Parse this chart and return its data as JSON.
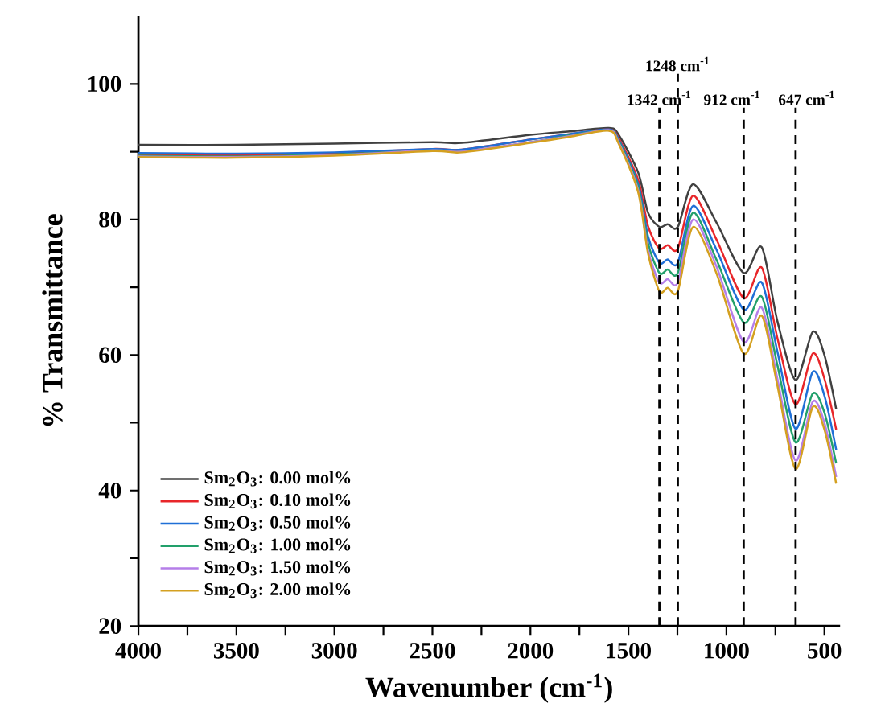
{
  "chart_data": {
    "type": "line",
    "xlabel": "Wavenumber (cm$^{-1}$)",
    "ylabel": "% Transmittance",
    "x": [
      4000,
      3500,
      3000,
      2500,
      2350,
      2000,
      1800,
      1600,
      1550,
      1450,
      1400,
      1342,
      1300,
      1248,
      1170,
      1050,
      912,
      820,
      740,
      647,
      560,
      500,
      440
    ],
    "series": [
      {
        "name": "Sm$_{2}$O$_{3}$: 0.00 mol%",
        "color": "#404040",
        "values": [
          91,
          91,
          91.2,
          91.4,
          91.3,
          92.5,
          93,
          93.5,
          92.5,
          86.9,
          81,
          78.9,
          79.3,
          78.9,
          85.2,
          79.5,
          72.1,
          75.9,
          65,
          56.3,
          63.4,
          60,
          52
        ]
      },
      {
        "name": "Sm$_{2}$O$_{3}$: 0.10 mol%",
        "color": "#e8262a",
        "values": [
          89.6,
          89.5,
          89.8,
          90.4,
          90.3,
          91.8,
          92.6,
          93.3,
          92,
          85.8,
          79,
          75.7,
          76.2,
          75.7,
          83.5,
          77,
          68.4,
          72.9,
          62.5,
          52.7,
          60.2,
          56.5,
          49
        ]
      },
      {
        "name": "Sm$_{2}$O$_{3}$: 0.50 mol%",
        "color": "#1f6fd6",
        "values": [
          89.8,
          89.7,
          89.9,
          90.4,
          90.3,
          91.8,
          92.6,
          93.3,
          91.8,
          85.2,
          77.5,
          73.6,
          74.1,
          73.6,
          82,
          75.5,
          66.7,
          70.7,
          60.5,
          49.1,
          57.5,
          54,
          46
        ]
      },
      {
        "name": "Sm$_{2}$O$_{3}$: 1.00 mol%",
        "color": "#22a06b",
        "values": [
          89.4,
          89.3,
          89.6,
          90.2,
          90,
          91.4,
          92.4,
          93.2,
          91.6,
          84.8,
          76.5,
          72.1,
          72.6,
          72.1,
          81,
          74,
          64.8,
          68.6,
          58.5,
          47.1,
          54.3,
          51.5,
          44
        ]
      },
      {
        "name": "Sm$_{2}$O$_{3}$: 1.50 mol%",
        "color": "#b57ee8",
        "values": [
          89.3,
          89.2,
          89.5,
          90.2,
          90,
          91.4,
          92.3,
          93.2,
          91.4,
          84.3,
          75.5,
          70.7,
          71.2,
          70.7,
          80,
          73,
          61.9,
          67,
          56.5,
          44.4,
          53.1,
          50,
          42
        ]
      },
      {
        "name": "Sm$_{2}$O$_{3}$: 2.00 mol%",
        "color": "#d4a020",
        "values": [
          89.2,
          89.1,
          89.4,
          90.1,
          89.9,
          91.3,
          92.2,
          93.1,
          91.2,
          84,
          75,
          69.4,
          69.9,
          69.4,
          78.9,
          72,
          60.2,
          65.8,
          55.5,
          43.2,
          52.3,
          49,
          41
        ]
      }
    ],
    "xlim": [
      4000,
      420
    ],
    "ylim": [
      20,
      110
    ],
    "xticks": [
      4000,
      {
        "value": 3750,
        "label": null
      },
      3500,
      {
        "value": 3250,
        "label": null
      },
      3000,
      {
        "value": 2750,
        "label": null
      },
      2500,
      {
        "value": 2250,
        "label": null
      },
      2000,
      {
        "value": 1750,
        "label": null
      },
      1500,
      {
        "value": 1250,
        "label": null
      },
      1000,
      {
        "value": 750,
        "label": null
      },
      500
    ],
    "yticks": [
      20,
      {
        "value": 30,
        "label": null
      },
      40,
      {
        "value": 50,
        "label": null
      },
      60,
      {
        "value": 70,
        "label": null
      },
      80,
      {
        "value": 90,
        "label": null
      },
      100
    ],
    "ref_lines": [
      {
        "axis": "x",
        "value": 1342,
        "label": "1342 cm$^{-1}$",
        "color": "#000000",
        "line_style": "dashed"
      },
      {
        "axis": "x",
        "value": 1248,
        "label": "1248 cm$^{-1}$",
        "color": "#000000",
        "line_style": "dashed"
      },
      {
        "axis": "x",
        "value": 912,
        "label": "912 cm$^{-1}$",
        "color": "#000000",
        "line_style": "dashed"
      },
      {
        "axis": "x",
        "value": 647,
        "label": "647 cm$^{-1}$",
        "color": "#000000",
        "line_style": "dashed"
      }
    ],
    "legend": "bottom left",
    "grid": false,
    "marker": "none",
    "line_style": "solid"
  }
}
